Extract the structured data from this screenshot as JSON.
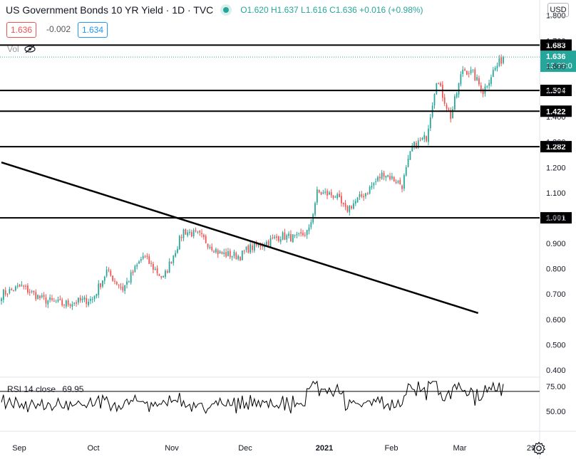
{
  "header": {
    "title": "US Government Bonds 10 YR Yield · 1D · TVC",
    "ohlc": {
      "o": "O1.620",
      "h": "H1.637",
      "l": "L1.616",
      "c": "C1.636",
      "chg": "+0.016 (+0.98%)"
    },
    "bid": "1.636",
    "spread": "-0.002",
    "ask": "1.634",
    "vol_label": "Vol",
    "currency": "USD"
  },
  "rsi": {
    "label": "RSI 14 close",
    "value": "69.95",
    "ticks": [
      "75.00",
      "50.00"
    ]
  },
  "chart_data": {
    "type": "candlestick",
    "yaxis_ticks": [
      "0.400",
      "0.500",
      "0.600",
      "0.700",
      "0.800",
      "0.900",
      "1.000",
      "1.100",
      "1.200",
      "1.300",
      "1.400",
      "1.500",
      "1.600",
      "1.700",
      "1.800"
    ],
    "ylim": [
      0.37,
      1.86
    ],
    "xaxis_ticks": [
      "Sep",
      "Oct",
      "Nov",
      "Dec",
      "2021",
      "Feb",
      "Mar",
      "29"
    ],
    "horizontal_levels": [
      {
        "value": 1.683,
        "label": "1.683"
      },
      {
        "value": 1.504,
        "label": "1.504"
      },
      {
        "value": 1.422,
        "label": "1.422"
      },
      {
        "value": 1.282,
        "label": "1.282"
      },
      {
        "value": 1.001,
        "label": "1.001"
      }
    ],
    "trendline": {
      "from": {
        "date": "2020-08-31",
        "value": 1.22
      },
      "to": {
        "date": "2021-03-08",
        "value": 0.625
      }
    },
    "last_price": {
      "value": "1.636",
      "countdown": "13:33:0"
    },
    "rsi_levels": [
      70
    ]
  },
  "colors": {
    "up": "#26a69a",
    "down": "#ef5350",
    "level": "#000000",
    "grid": "#f0f3fa",
    "axis": "#e0e3eb",
    "text": "#131722"
  }
}
